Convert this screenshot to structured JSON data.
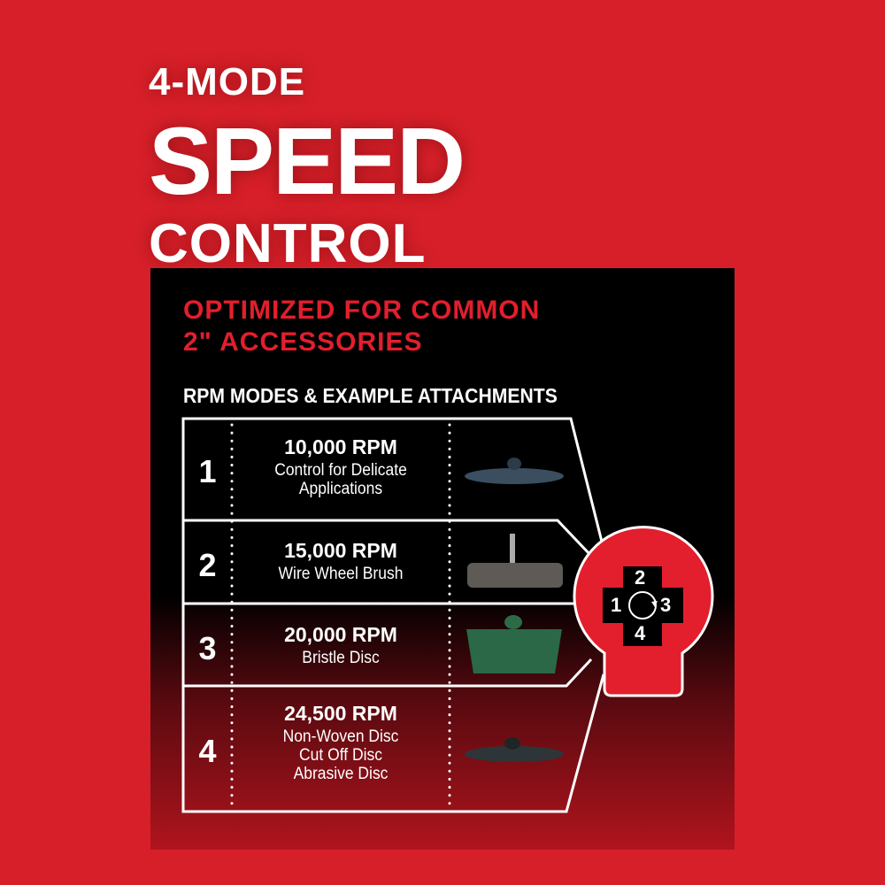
{
  "headline": {
    "line1": "4-MODE",
    "line2": "SPEED",
    "line3": "CONTROL"
  },
  "subtitle": {
    "line1": "OPTIMIZED FOR COMMON",
    "line2": "2\" ACCESSORIES"
  },
  "table_title": "RPM MODES & EXAMPLE ATTACHMENTS",
  "modes": [
    {
      "mode": "1",
      "rpm": "10,000 RPM",
      "desc": [
        "Control for Delicate",
        "Applications"
      ],
      "attachment": "flap-disc"
    },
    {
      "mode": "2",
      "rpm": "15,000 RPM",
      "desc": [
        "Wire Wheel Brush"
      ],
      "attachment": "wire-wheel-brush"
    },
    {
      "mode": "3",
      "rpm": "20,000 RPM",
      "desc": [
        "Bristle Disc"
      ],
      "attachment": "bristle-disc"
    },
    {
      "mode": "4",
      "rpm": "24,500 RPM",
      "desc": [
        "Non-Woven Disc",
        "Cut Off Disc",
        "Abrasive Disc"
      ],
      "attachment": "abrasive-disc"
    }
  ],
  "dial": {
    "labels": [
      "1",
      "2",
      "3",
      "4"
    ],
    "icon": "rotate-clockwise-icon"
  },
  "colors": {
    "background": "#d71f29",
    "accent": "#e31e2d",
    "panel": "#000000"
  }
}
